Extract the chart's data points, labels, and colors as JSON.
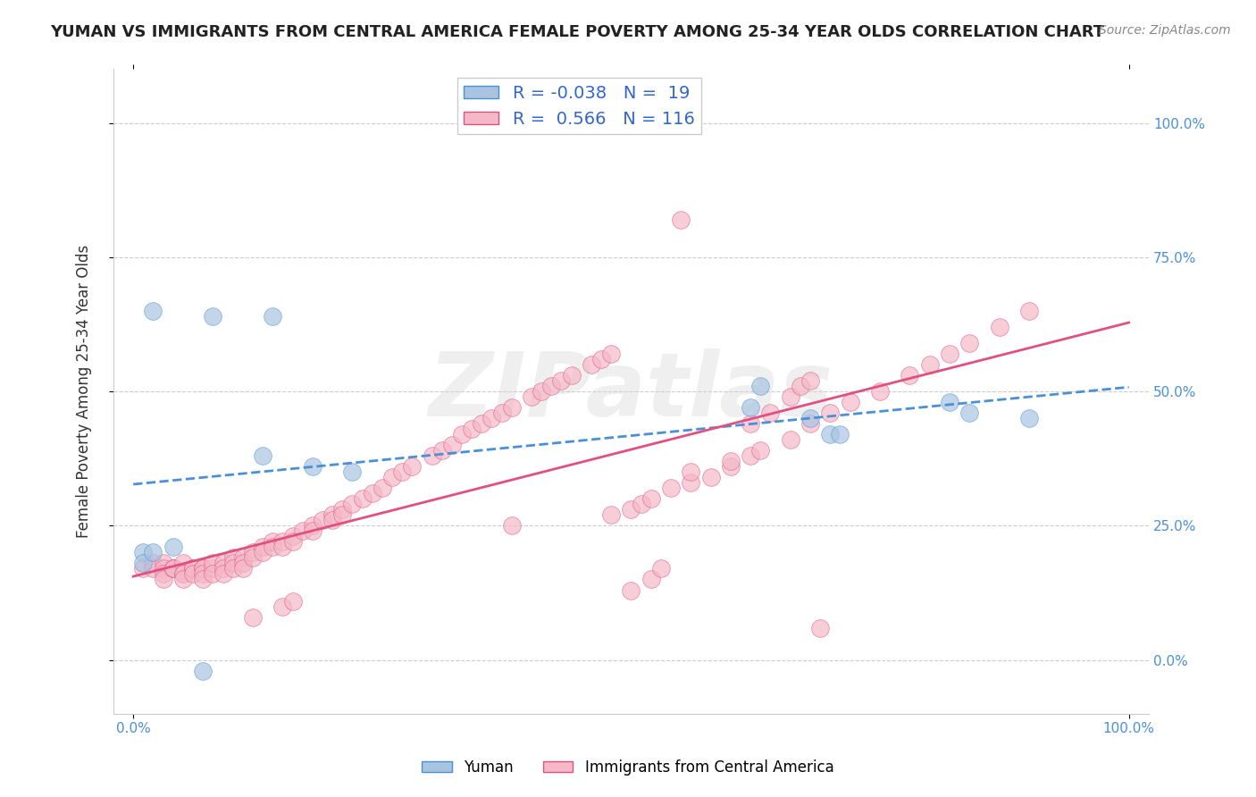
{
  "title": "YUMAN VS IMMIGRANTS FROM CENTRAL AMERICA FEMALE POVERTY AMONG 25-34 YEAR OLDS CORRELATION CHART",
  "source": "Source: ZipAtlas.com",
  "ylabel": "Female Poverty Among 25-34 Year Olds",
  "xlabel": "",
  "xlim": [
    0.0,
    1.0
  ],
  "ylim": [
    -0.05,
    1.15
  ],
  "yticks": [
    0.0,
    0.25,
    0.5,
    0.75,
    1.0
  ],
  "ytick_labels": [
    "0.0%",
    "25.0%",
    "50.0%",
    "75.0%",
    "100.0%"
  ],
  "xticks": [
    0.0,
    1.0
  ],
  "xtick_labels": [
    "0.0%",
    "100.0%"
  ],
  "right_ytick_labels": [
    "100.0%",
    "75.0%",
    "50.0%",
    "25.0%",
    "0.0%"
  ],
  "blue_R": -0.038,
  "blue_N": 19,
  "pink_R": 0.566,
  "pink_N": 116,
  "blue_color": "#a8c4e0",
  "pink_color": "#f4b8c8",
  "blue_line_color": "#4a90d9",
  "pink_line_color": "#e05080",
  "legend_box_color": "#a8c4e0",
  "legend_pink_box_color": "#f4b8c8",
  "blue_scatter_x": [
    0.02,
    0.08,
    0.14,
    0.62,
    0.63,
    0.68,
    0.7,
    0.71,
    0.82,
    0.84,
    0.9,
    0.13,
    0.18,
    0.22,
    0.01,
    0.01,
    0.02,
    0.04,
    0.07
  ],
  "blue_scatter_y": [
    0.65,
    0.64,
    0.64,
    0.47,
    0.51,
    0.45,
    0.42,
    0.42,
    0.48,
    0.46,
    0.45,
    0.38,
    0.36,
    0.35,
    0.2,
    0.18,
    0.2,
    0.21,
    -0.02
  ],
  "pink_scatter_x": [
    0.55,
    0.01,
    0.02,
    0.02,
    0.03,
    0.03,
    0.03,
    0.03,
    0.04,
    0.04,
    0.04,
    0.05,
    0.05,
    0.05,
    0.05,
    0.06,
    0.06,
    0.06,
    0.07,
    0.07,
    0.07,
    0.07,
    0.08,
    0.08,
    0.08,
    0.09,
    0.09,
    0.09,
    0.1,
    0.1,
    0.1,
    0.11,
    0.11,
    0.11,
    0.12,
    0.12,
    0.13,
    0.13,
    0.14,
    0.14,
    0.15,
    0.15,
    0.16,
    0.16,
    0.17,
    0.18,
    0.18,
    0.19,
    0.2,
    0.2,
    0.21,
    0.21,
    0.22,
    0.23,
    0.24,
    0.25,
    0.26,
    0.27,
    0.28,
    0.3,
    0.31,
    0.32,
    0.33,
    0.34,
    0.35,
    0.36,
    0.37,
    0.38,
    0.4,
    0.41,
    0.42,
    0.43,
    0.44,
    0.46,
    0.47,
    0.48,
    0.5,
    0.51,
    0.52,
    0.54,
    0.56,
    0.58,
    0.6,
    0.62,
    0.63,
    0.66,
    0.68,
    0.7,
    0.72,
    0.75,
    0.78,
    0.8,
    0.82,
    0.84,
    0.87,
    0.9,
    0.12,
    0.15,
    0.16,
    0.38,
    0.48,
    0.56,
    0.6,
    0.62,
    0.64,
    0.66,
    0.67,
    0.68,
    0.69,
    0.5,
    0.52,
    0.53
  ],
  "pink_scatter_y": [
    0.82,
    0.17,
    0.18,
    0.17,
    0.18,
    0.17,
    0.16,
    0.15,
    0.17,
    0.17,
    0.17,
    0.18,
    0.16,
    0.16,
    0.15,
    0.17,
    0.17,
    0.16,
    0.17,
    0.17,
    0.16,
    0.15,
    0.17,
    0.18,
    0.16,
    0.18,
    0.17,
    0.16,
    0.19,
    0.18,
    0.17,
    0.19,
    0.18,
    0.17,
    0.2,
    0.19,
    0.21,
    0.2,
    0.22,
    0.21,
    0.22,
    0.21,
    0.23,
    0.22,
    0.24,
    0.25,
    0.24,
    0.26,
    0.27,
    0.26,
    0.28,
    0.27,
    0.29,
    0.3,
    0.31,
    0.32,
    0.34,
    0.35,
    0.36,
    0.38,
    0.39,
    0.4,
    0.42,
    0.43,
    0.44,
    0.45,
    0.46,
    0.47,
    0.49,
    0.5,
    0.51,
    0.52,
    0.53,
    0.55,
    0.56,
    0.57,
    0.28,
    0.29,
    0.3,
    0.32,
    0.33,
    0.34,
    0.36,
    0.38,
    0.39,
    0.41,
    0.44,
    0.46,
    0.48,
    0.5,
    0.53,
    0.55,
    0.57,
    0.59,
    0.62,
    0.65,
    0.08,
    0.1,
    0.11,
    0.25,
    0.27,
    0.35,
    0.37,
    0.44,
    0.46,
    0.49,
    0.51,
    0.52,
    0.06,
    0.13,
    0.15,
    0.17
  ],
  "watermark": "ZIPatlas",
  "background_color": "#ffffff",
  "grid_color": "#cccccc"
}
